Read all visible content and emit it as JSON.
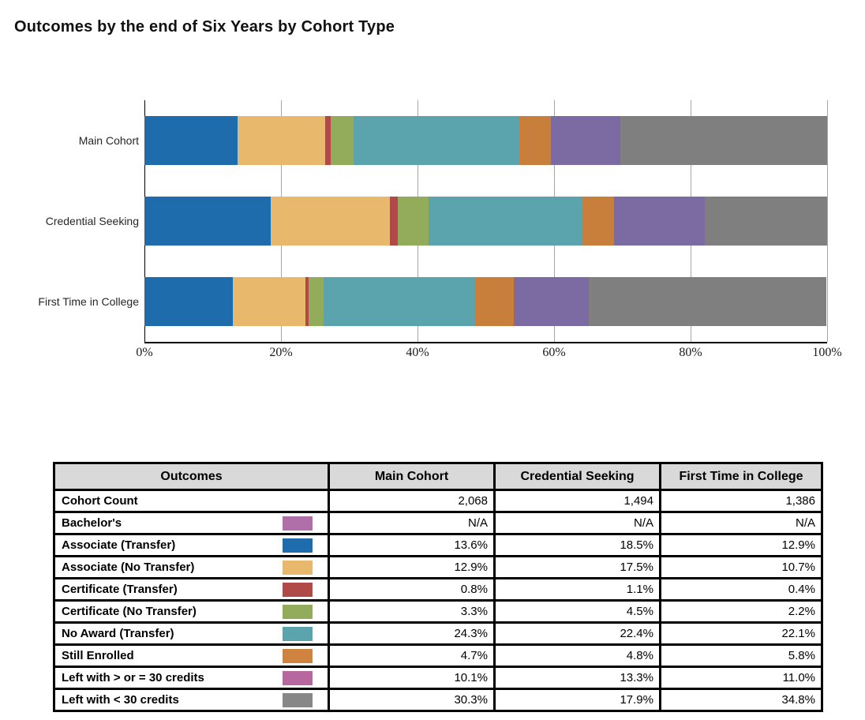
{
  "title": "Outcomes by the end of Six Years by Cohort Type",
  "chart_data": {
    "type": "bar",
    "orientation": "horizontal-stacked",
    "title": "Outcomes by the end of Six Years by Cohort Type",
    "categories": [
      "Main Cohort",
      "Credential Seeking",
      "First Time in College"
    ],
    "x_ticks": [
      "0%",
      "20%",
      "40%",
      "60%",
      "80%",
      "100%"
    ],
    "xlim": [
      0,
      100
    ],
    "grid": "vertical-gray",
    "legend_position": "table-below",
    "series": [
      {
        "name": "Associate (Transfer)",
        "color": "#1e6cab",
        "values": [
          13.6,
          18.5,
          12.9
        ]
      },
      {
        "name": "Associate (No Transfer)",
        "color": "#e8b96d",
        "values": [
          12.9,
          17.5,
          10.7
        ]
      },
      {
        "name": "Certificate (Transfer)",
        "color": "#b04a48",
        "values": [
          0.8,
          1.1,
          0.4
        ]
      },
      {
        "name": "Certificate (No Transfer)",
        "color": "#93ac5b",
        "values": [
          3.3,
          4.5,
          2.2
        ]
      },
      {
        "name": "No Award (Transfer)",
        "color": "#5ba4ad",
        "values": [
          24.3,
          22.4,
          22.1
        ]
      },
      {
        "name": "Still Enrolled",
        "color": "#c87f3c",
        "values": [
          4.7,
          4.8,
          5.8
        ]
      },
      {
        "name": "Left with > or = 30 credits",
        "color": "#7c6ba2",
        "values": [
          10.1,
          13.3,
          11.0
        ]
      },
      {
        "name": "Left with < 30 credits",
        "color": "#7f7f7f",
        "values": [
          30.3,
          17.9,
          34.8
        ]
      }
    ]
  },
  "table": {
    "headers": [
      "Outcomes",
      "Main Cohort",
      "Credential Seeking",
      "First Time in College"
    ],
    "header_bg": "#d9d9d9",
    "rows": [
      {
        "label": "Cohort Count",
        "swatch": null,
        "values": [
          "2,068",
          "1,494",
          "1,386"
        ]
      },
      {
        "label": "Bachelor's",
        "swatch": "#b06fa8",
        "values": [
          "N/A",
          "N/A",
          "N/A"
        ]
      },
      {
        "label": "Associate (Transfer)",
        "swatch": "#1e6cab",
        "values": [
          "13.6%",
          "18.5%",
          "12.9%"
        ]
      },
      {
        "label": "Associate (No Transfer)",
        "swatch": "#e8b96d",
        "values": [
          "12.9%",
          "17.5%",
          "10.7%"
        ]
      },
      {
        "label": "Certificate (Transfer)",
        "swatch": "#b04a48",
        "values": [
          "0.8%",
          "1.1%",
          "0.4%"
        ]
      },
      {
        "label": "Certificate (No Transfer)",
        "swatch": "#93ac5b",
        "values": [
          "3.3%",
          "4.5%",
          "2.2%"
        ]
      },
      {
        "label": "No Award (Transfer)",
        "swatch": "#5ba4ad",
        "values": [
          "24.3%",
          "22.4%",
          "22.1%"
        ]
      },
      {
        "label": "Still Enrolled",
        "swatch": "#cf833f",
        "values": [
          "4.7%",
          "4.8%",
          "5.8%"
        ]
      },
      {
        "label": "Left with > or = 30 credits",
        "swatch": "#b5679e",
        "values": [
          "10.1%",
          "13.3%",
          "11.0%"
        ]
      },
      {
        "label": "Left with < 30 credits",
        "swatch": "#878787",
        "values": [
          "30.3%",
          "17.9%",
          "34.8%"
        ]
      }
    ]
  }
}
